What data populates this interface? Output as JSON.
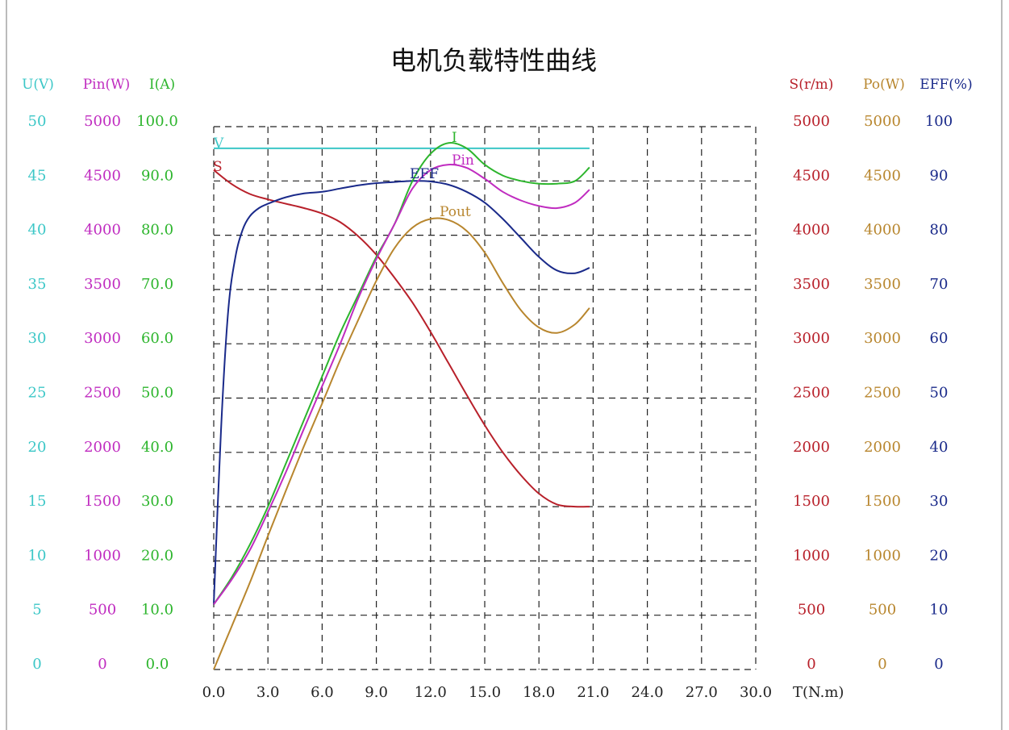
{
  "chart_data": {
    "type": "line",
    "title": "电机负载特性曲线",
    "xlabel": "T(N.m)",
    "x_ticks": [
      "0.0",
      "3.0",
      "6.0",
      "9.0",
      "12.0",
      "15.0",
      "18.0",
      "21.0",
      "24.0",
      "27.0",
      "30.0"
    ],
    "xlim": [
      0,
      30
    ],
    "grid": true,
    "axes": [
      {
        "id": "U",
        "label": "U(V)",
        "color": "#3cc7c7",
        "ticks": [
          "50",
          "45",
          "40",
          "35",
          "30",
          "25",
          "20",
          "15",
          "10",
          "5",
          "0"
        ],
        "range": [
          0,
          50
        ],
        "side": "left"
      },
      {
        "id": "Pin",
        "label": "Pin(W)",
        "color": "#c02cc0",
        "ticks": [
          "5000",
          "4500",
          "4000",
          "3500",
          "3000",
          "2500",
          "2000",
          "1500",
          "1000",
          "500",
          "0"
        ],
        "range": [
          0,
          5000
        ],
        "side": "left"
      },
      {
        "id": "I",
        "label": "I(A)",
        "color": "#2db52d",
        "ticks": [
          "100.0",
          "90.0",
          "80.0",
          "70.0",
          "60.0",
          "50.0",
          "40.0",
          "30.0",
          "20.0",
          "10.0",
          "0.0"
        ],
        "range": [
          0,
          100
        ],
        "side": "left"
      },
      {
        "id": "S",
        "label": "S(r/m)",
        "color": "#b8202a",
        "ticks": [
          "5000",
          "4500",
          "4000",
          "3500",
          "3000",
          "2500",
          "2000",
          "1500",
          "1000",
          "500",
          "0"
        ],
        "range": [
          0,
          5000
        ],
        "side": "right"
      },
      {
        "id": "Po",
        "label": "Po(W)",
        "color": "#b8862e",
        "ticks": [
          "5000",
          "4500",
          "4000",
          "3500",
          "3000",
          "2500",
          "2000",
          "1500",
          "1000",
          "500",
          "0"
        ],
        "range": [
          0,
          5000
        ],
        "side": "right"
      },
      {
        "id": "EFF",
        "label": "EFF(%)",
        "color": "#1a2a8a",
        "ticks": [
          "100",
          "90",
          "80",
          "70",
          "60",
          "50",
          "40",
          "30",
          "20",
          "10",
          "0"
        ],
        "range": [
          0,
          100
        ],
        "side": "right"
      }
    ],
    "series": [
      {
        "name": "V",
        "axis": "U",
        "color": "#3cc7c7",
        "x": [
          0,
          20.8
        ],
        "values": [
          48,
          48
        ]
      },
      {
        "name": "S",
        "axis": "S",
        "color": "#b8202a",
        "x": [
          0,
          1,
          2,
          3,
          4,
          5,
          6,
          7,
          8,
          9,
          10,
          11,
          12,
          13,
          14,
          15,
          16,
          17,
          18,
          19,
          20,
          20.8
        ],
        "values": [
          4600,
          4470,
          4380,
          4330,
          4290,
          4250,
          4200,
          4120,
          3990,
          3820,
          3610,
          3380,
          3110,
          2820,
          2530,
          2250,
          2000,
          1790,
          1620,
          1520,
          1500,
          1500
        ]
      },
      {
        "name": "EFF",
        "axis": "EFF",
        "color": "#1a2a8a",
        "x": [
          0,
          0.4,
          0.8,
          1.2,
          1.6,
          2,
          2.5,
          3,
          4,
          5,
          6,
          7,
          8,
          9,
          10,
          11,
          12,
          13,
          14,
          15,
          16,
          17,
          18,
          19,
          20,
          20.8
        ],
        "values": [
          12,
          44,
          66,
          76,
          81,
          83.5,
          85,
          85.8,
          87,
          87.7,
          88,
          88.6,
          89.2,
          89.6,
          89.8,
          90,
          89.9,
          89.3,
          88,
          86,
          83,
          79.5,
          76,
          73.5,
          73,
          74
        ]
      },
      {
        "name": "I",
        "axis": "I",
        "color": "#2db52d",
        "x": [
          0,
          1,
          2,
          3,
          4,
          5,
          6,
          7,
          8,
          9,
          10,
          11,
          12,
          13,
          14,
          15,
          16,
          17,
          18,
          19,
          20,
          20.8
        ],
        "values": [
          12,
          17,
          23,
          30,
          38,
          46,
          54,
          62,
          69,
          76,
          82,
          90,
          95,
          97,
          96,
          93,
          91,
          90,
          89.5,
          89.5,
          90,
          92.5
        ]
      },
      {
        "name": "Pin",
        "axis": "Pin",
        "color": "#c02cc0",
        "x": [
          0,
          1,
          2,
          3,
          4,
          5,
          6,
          7,
          8,
          9,
          10,
          11,
          12,
          13,
          14,
          15,
          16,
          17,
          18,
          19,
          20,
          20.8
        ],
        "values": [
          600,
          830,
          1100,
          1450,
          1820,
          2220,
          2610,
          3000,
          3420,
          3780,
          4100,
          4430,
          4600,
          4650,
          4620,
          4520,
          4400,
          4320,
          4270,
          4250,
          4300,
          4420
        ]
      },
      {
        "name": "Pout",
        "axis": "Po",
        "color": "#b8862e",
        "x": [
          0,
          1,
          2,
          3,
          4,
          5,
          6,
          7,
          8,
          9,
          10,
          11,
          12,
          13,
          14,
          15,
          16,
          17,
          18,
          19,
          20,
          20.8
        ],
        "values": [
          0,
          400,
          800,
          1230,
          1650,
          2060,
          2450,
          2850,
          3220,
          3580,
          3880,
          4070,
          4150,
          4140,
          4040,
          3840,
          3560,
          3310,
          3150,
          3100,
          3180,
          3330
        ]
      }
    ]
  }
}
